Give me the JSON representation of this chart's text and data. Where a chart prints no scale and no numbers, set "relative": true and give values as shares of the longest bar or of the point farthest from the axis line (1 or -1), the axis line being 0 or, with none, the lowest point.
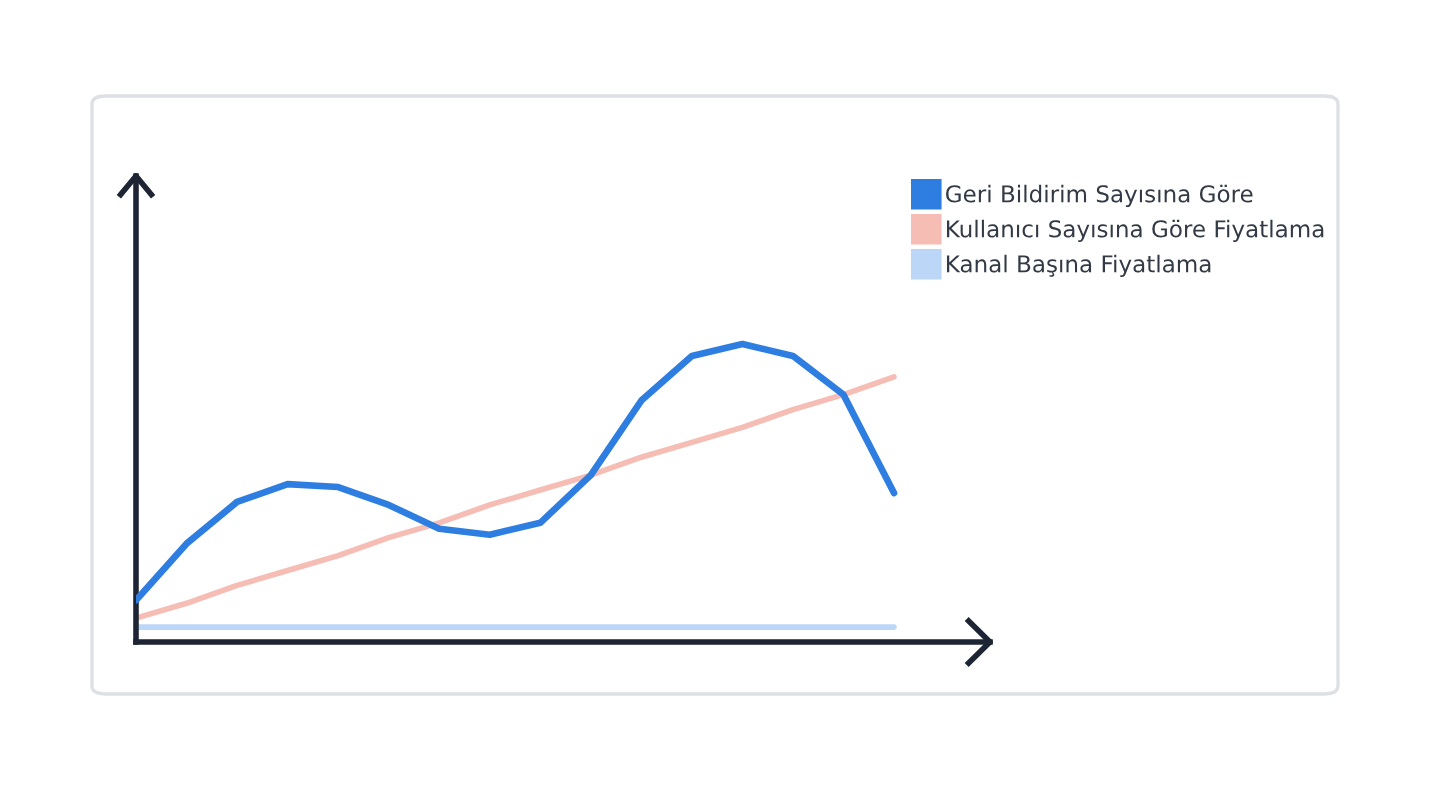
{
  "chart_data": {
    "type": "line",
    "relative": true,
    "legend": "top right",
    "grid": false,
    "marker": "none",
    "line_style": "solid",
    "categories": [
      null,
      null,
      null,
      null,
      null,
      null,
      null,
      null,
      null,
      null,
      null,
      null,
      null,
      null,
      null,
      null
    ],
    "series": [
      {
        "name": "Geri Bildirim Sayısına Göre",
        "color": "#2e7de1",
        "values": [
          0.14,
          0.33,
          0.47,
          0.53,
          0.52,
          0.46,
          0.38,
          0.36,
          0.4,
          0.56,
          0.81,
          0.96,
          1.0,
          0.96,
          0.83,
          0.5
        ]
      },
      {
        "name": "Kullanıcı Sayısına Göre Fiyatlama",
        "color": "#f6bdb4",
        "values": [
          0.08,
          0.13,
          0.19,
          0.24,
          0.29,
          0.35,
          0.4,
          0.46,
          0.51,
          0.56,
          0.62,
          0.67,
          0.72,
          0.78,
          0.83,
          0.89
        ]
      },
      {
        "name": "Kanal Başına Fiyatlama",
        "color": "#bcd6f8",
        "values": [
          0.05,
          0.05,
          0.05,
          0.05,
          0.05,
          0.05,
          0.05,
          0.05,
          0.05,
          0.05,
          0.05,
          0.05,
          0.05,
          0.05,
          0.05,
          0.05
        ]
      }
    ]
  }
}
